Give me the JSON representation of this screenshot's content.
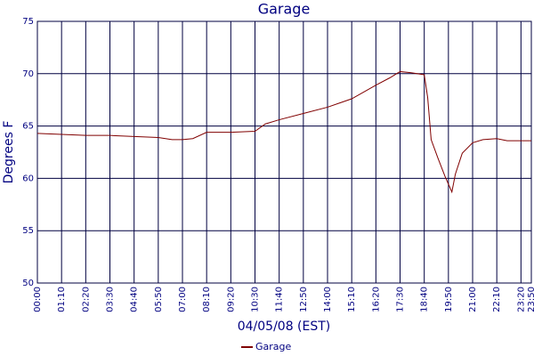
{
  "chart_data": {
    "type": "line",
    "title": "Garage",
    "x_label": "04/05/08 (EST)",
    "y_label": "Degrees F",
    "x": [
      0,
      70,
      140,
      210,
      280,
      350,
      390,
      420,
      450,
      490,
      560,
      630,
      660,
      700,
      770,
      840,
      910,
      980,
      1020,
      1050,
      1080,
      1120,
      1130,
      1140,
      1160,
      1180,
      1200,
      1210,
      1230,
      1260,
      1290,
      1330,
      1360,
      1430
    ],
    "series": [
      {
        "name": "Garage",
        "color": "#800000",
        "values": [
          64.3,
          64.2,
          64.1,
          64.1,
          64.0,
          63.9,
          63.7,
          63.7,
          63.8,
          64.4,
          64.4,
          64.5,
          65.2,
          65.6,
          66.2,
          66.8,
          67.6,
          68.9,
          69.6,
          70.2,
          70.1,
          69.9,
          67.7,
          63.7,
          61.9,
          60.2,
          58.7,
          60.4,
          62.4,
          63.4,
          63.7,
          63.8,
          63.6,
          63.6
        ]
      }
    ],
    "xlim": [
      0,
      1430
    ],
    "xticks": [
      {
        "value": 0,
        "label": "00:00"
      },
      {
        "value": 70,
        "label": "01:10"
      },
      {
        "value": 140,
        "label": "02:20"
      },
      {
        "value": 210,
        "label": "03:30"
      },
      {
        "value": 280,
        "label": "04:40"
      },
      {
        "value": 350,
        "label": "05:50"
      },
      {
        "value": 420,
        "label": "07:00"
      },
      {
        "value": 490,
        "label": "08:10"
      },
      {
        "value": 560,
        "label": "09:20"
      },
      {
        "value": 630,
        "label": "10:30"
      },
      {
        "value": 700,
        "label": "11:40"
      },
      {
        "value": 770,
        "label": "12:50"
      },
      {
        "value": 840,
        "label": "14:00"
      },
      {
        "value": 910,
        "label": "15:10"
      },
      {
        "value": 980,
        "label": "16:20"
      },
      {
        "value": 1050,
        "label": "17:30"
      },
      {
        "value": 1120,
        "label": "18:40"
      },
      {
        "value": 1190,
        "label": "19:50"
      },
      {
        "value": 1260,
        "label": "21:00"
      },
      {
        "value": 1330,
        "label": "22:10"
      },
      {
        "value": 1400,
        "label": "23:20"
      },
      {
        "value": 1430,
        "label": "23:50"
      }
    ],
    "ylim": [
      50,
      75
    ],
    "yticks": [
      50,
      55,
      60,
      65,
      70,
      75
    ],
    "grid": true
  }
}
